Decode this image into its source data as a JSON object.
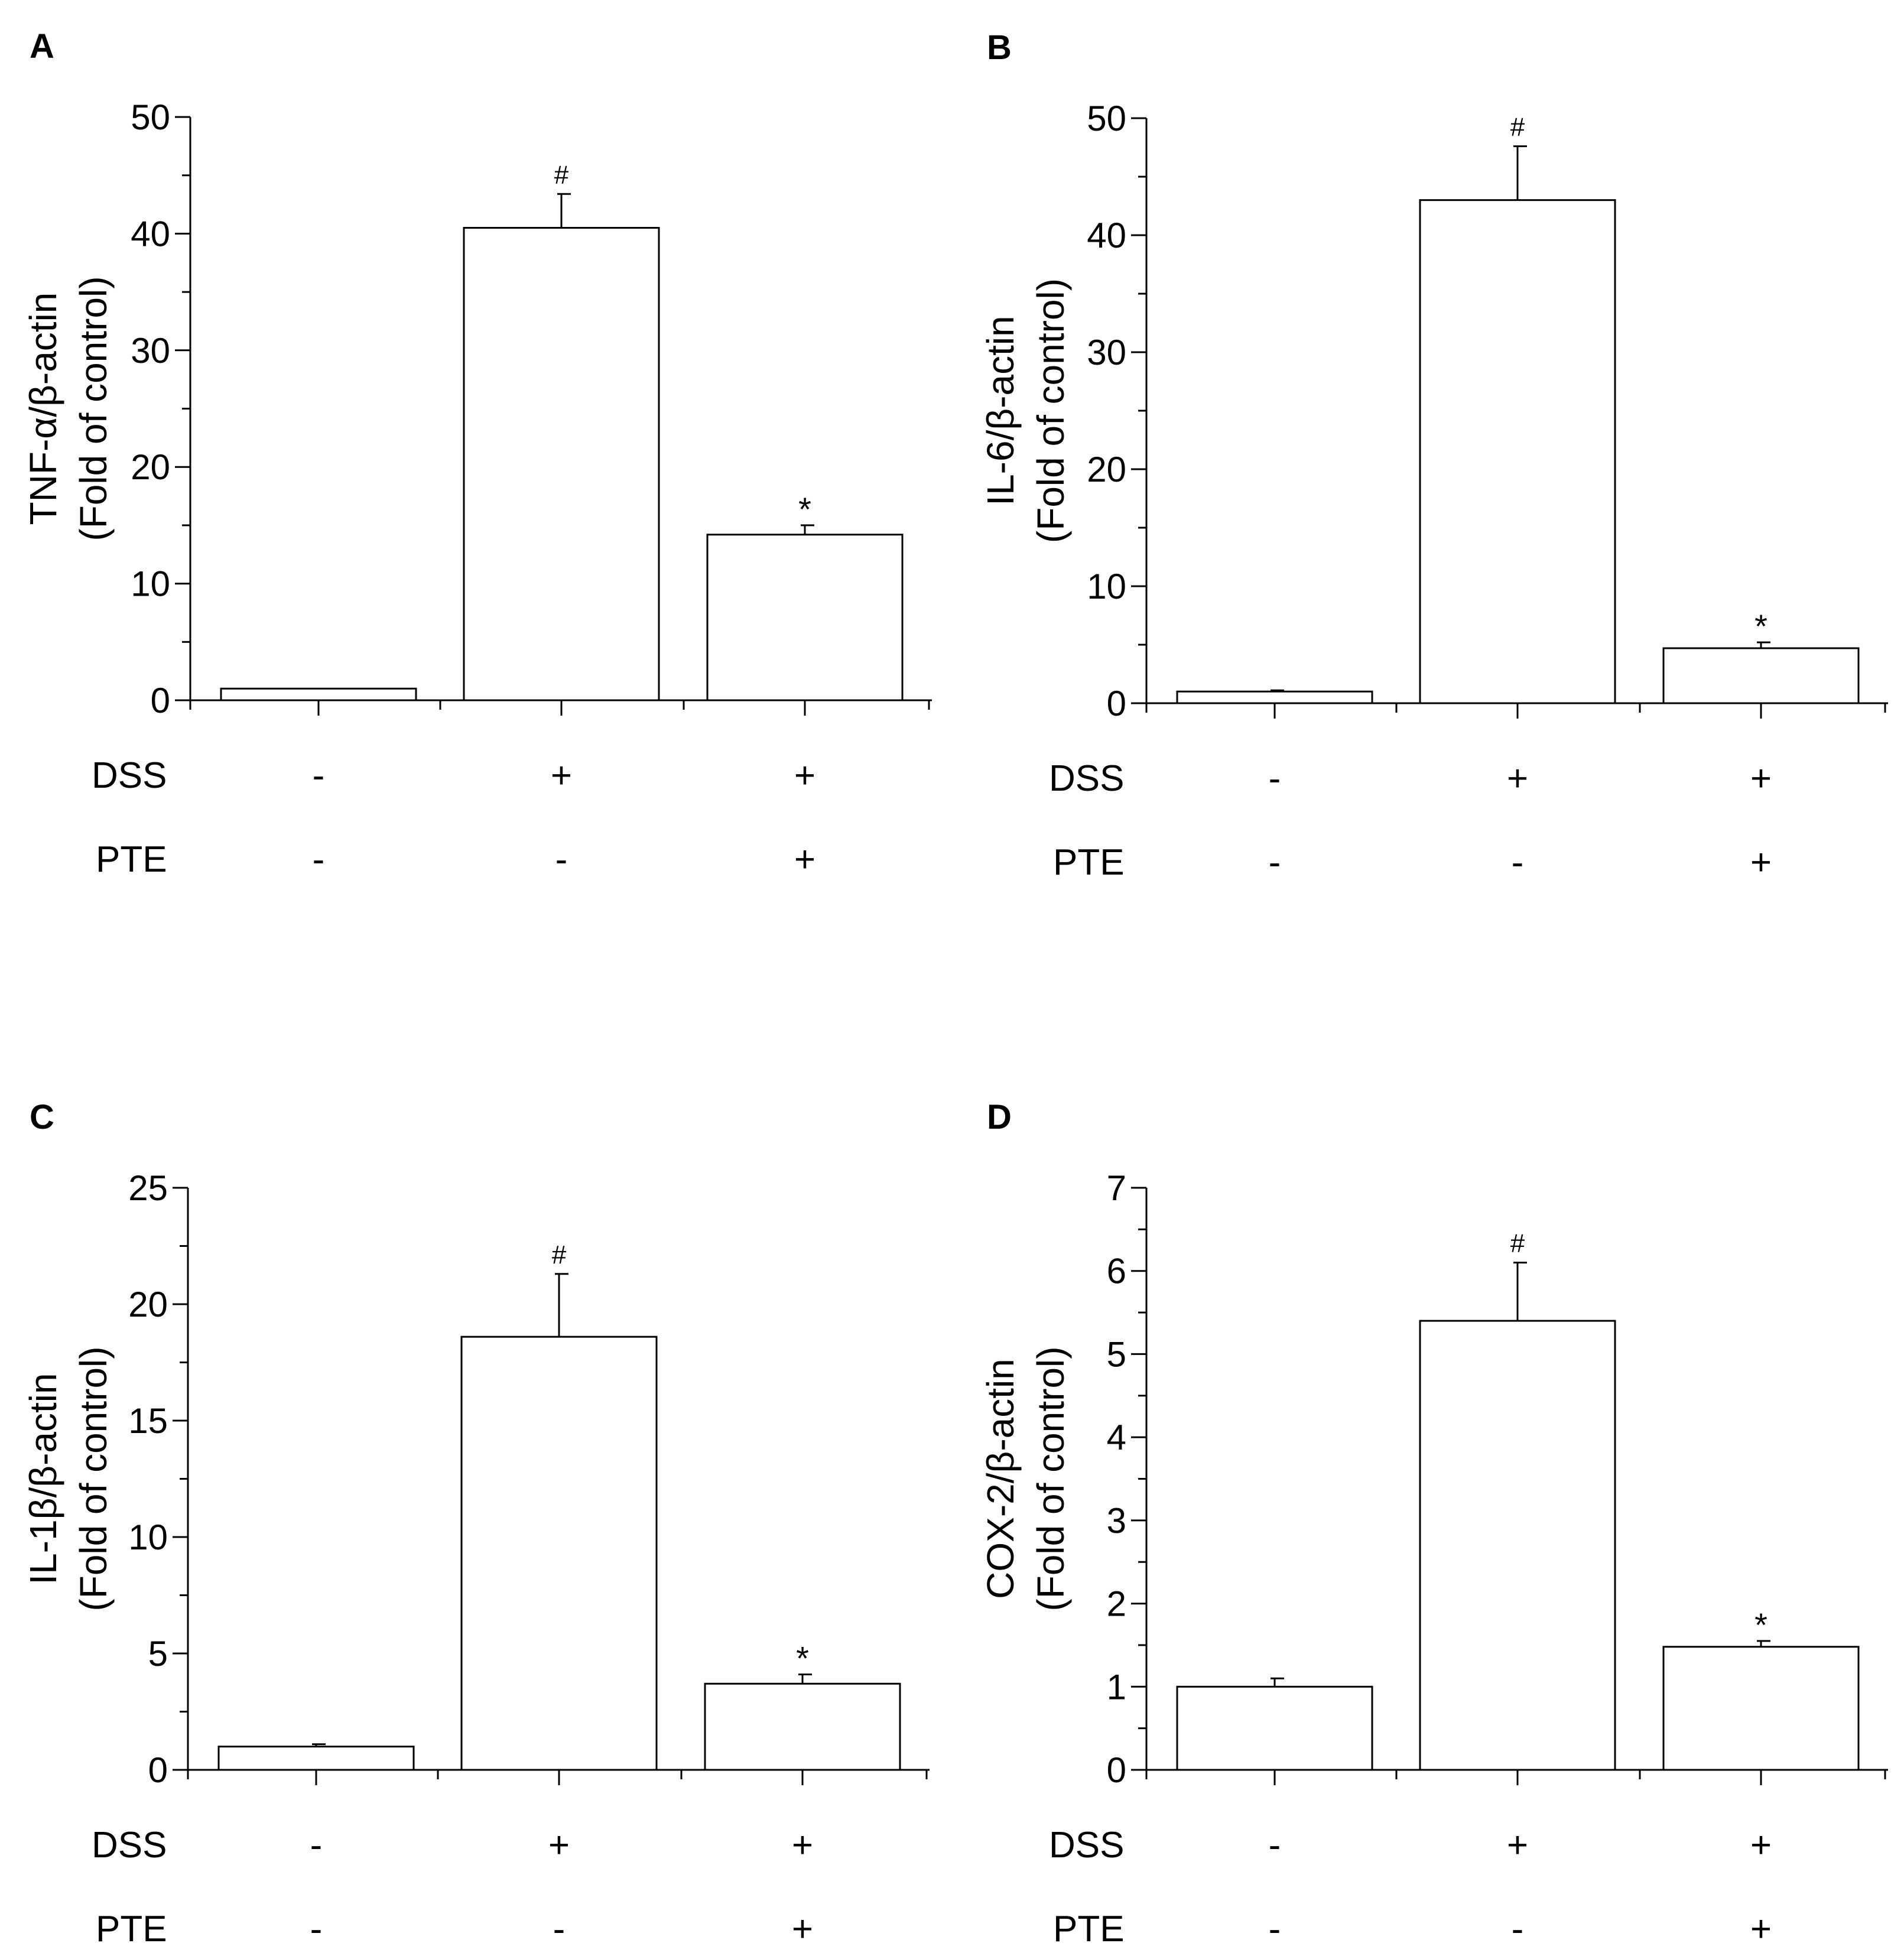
{
  "colors": {
    "bar_fill": "#ffffff",
    "stroke": "#000000",
    "text": "#000000"
  },
  "row_labels": [
    "DSS",
    "PTE"
  ],
  "chart_data": [
    {
      "panel": "A",
      "type": "bar",
      "ylabel_line1": "TNF-α/β-actin",
      "ylabel_line2": "(Fold of control)",
      "ylim": [
        0,
        50
      ],
      "major_ticks": [
        0,
        10,
        20,
        30,
        40,
        50
      ],
      "minor_step": 5,
      "values": [
        1.0,
        40.5,
        14.2
      ],
      "errors": [
        0,
        2.9,
        0.8
      ],
      "annotations": [
        "",
        "#",
        "*"
      ],
      "dss": [
        "-",
        "+",
        "+"
      ],
      "pte": [
        "-",
        "-",
        "+"
      ]
    },
    {
      "panel": "B",
      "type": "bar",
      "ylabel_line1": "IL-6/β-actin",
      "ylabel_line2": "(Fold of control)",
      "ylim": [
        0,
        50
      ],
      "major_ticks": [
        0,
        10,
        20,
        30,
        40,
        50
      ],
      "minor_step": 5,
      "values": [
        1.0,
        43.0,
        4.7
      ],
      "errors": [
        0.1,
        4.6,
        0.5
      ],
      "annotations": [
        "",
        "#",
        "*"
      ],
      "dss": [
        "-",
        "+",
        "+"
      ],
      "pte": [
        "-",
        "-",
        "+"
      ]
    },
    {
      "panel": "C",
      "type": "bar",
      "ylabel_line1": "IL-1β/β-actin",
      "ylabel_line2": "(Fold of control)",
      "ylim": [
        0,
        25
      ],
      "major_ticks": [
        0,
        5,
        10,
        15,
        20,
        25
      ],
      "minor_step": 2.5,
      "values": [
        1.0,
        18.6,
        3.7
      ],
      "errors": [
        0.1,
        2.7,
        0.4
      ],
      "annotations": [
        "",
        "#",
        "*"
      ],
      "dss": [
        "-",
        "+",
        "+"
      ],
      "pte": [
        "-",
        "-",
        "+"
      ]
    },
    {
      "panel": "D",
      "type": "bar",
      "ylabel_line1": "COX-2/β-actin",
      "ylabel_line2": "(Fold of control)",
      "ylim": [
        0,
        7
      ],
      "major_ticks": [
        0,
        1,
        2,
        3,
        4,
        5,
        6,
        7
      ],
      "minor_step": 0.5,
      "values": [
        1.0,
        5.4,
        1.48
      ],
      "errors": [
        0.1,
        0.7,
        0.07
      ],
      "annotations": [
        "",
        "#",
        "*"
      ],
      "dss": [
        "-",
        "+",
        "+"
      ],
      "pte": [
        "-",
        "-",
        "+"
      ]
    }
  ]
}
